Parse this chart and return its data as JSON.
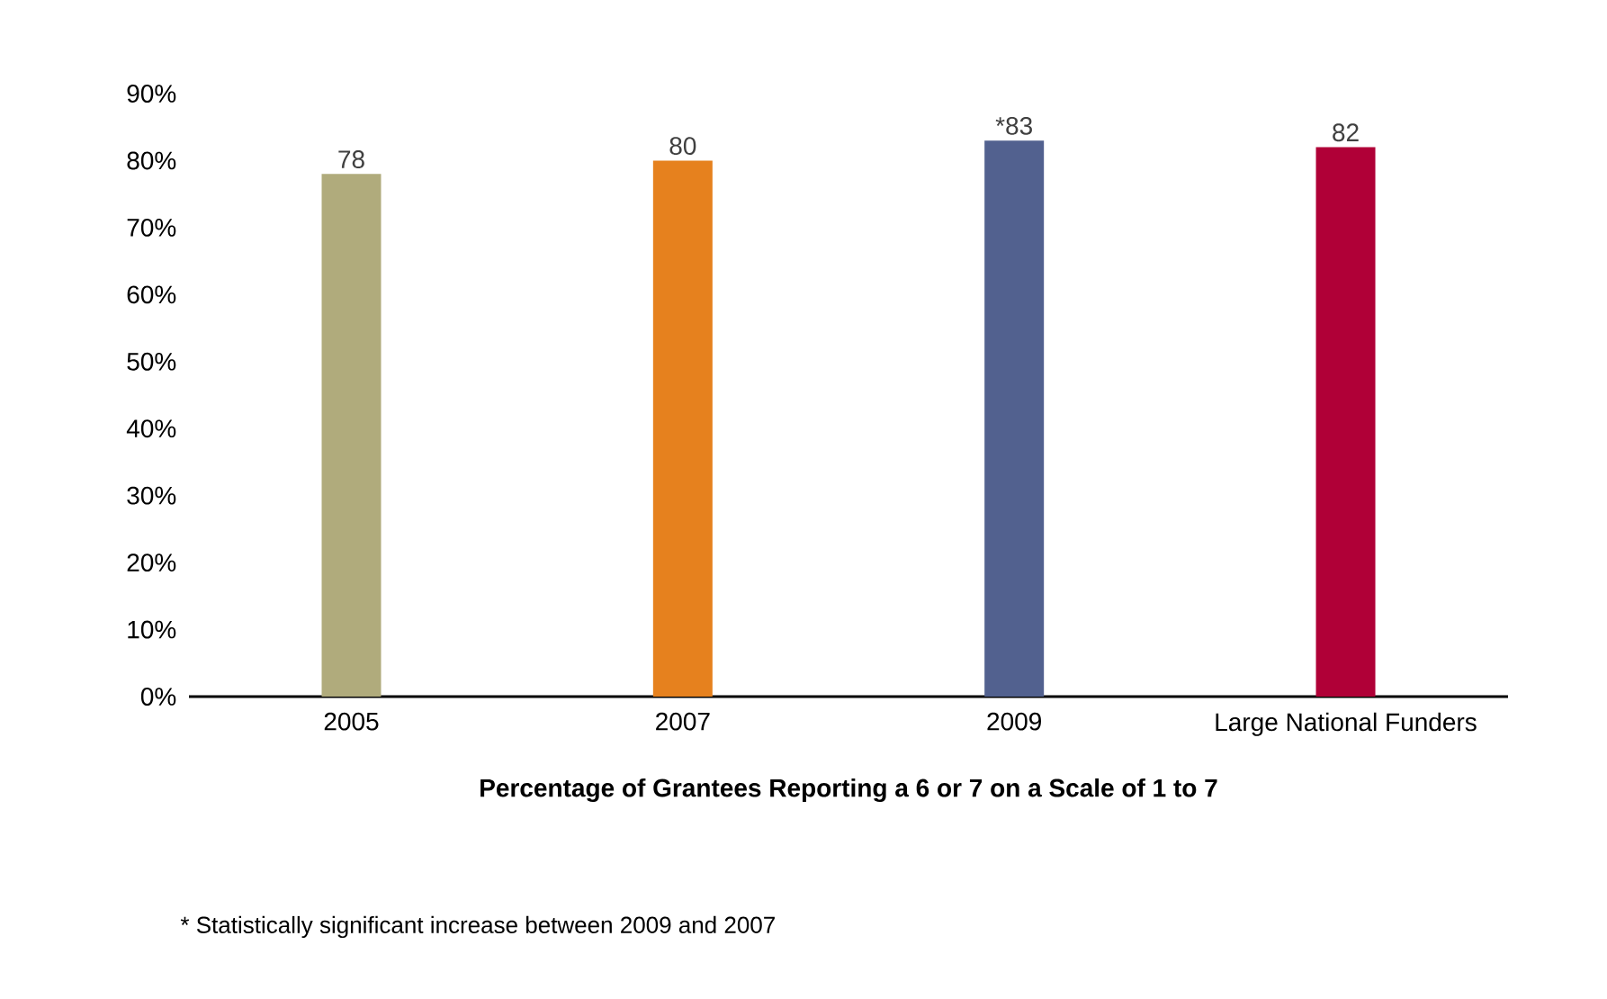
{
  "chart_data": {
    "type": "bar",
    "xlabel": "**Percentage of Grantees Reporting a 6 or 7 on a Scale of 1 to 7**",
    "categories": [
      "2005",
      "2007",
      "2009",
      "Large National Funders"
    ],
    "values": [
      78,
      80,
      83,
      82
    ],
    "colors": [
      "#b0ab7c",
      "#e6811e",
      "#52618f",
      "#b00037"
    ],
    "value_labels": [
      "78",
      "80",
      "*83",
      "82"
    ],
    "ylim": [
      0,
      90
    ],
    "yticks": [
      {
        "value": 0,
        "label": "0%"
      },
      {
        "value": 10,
        "label": "10%"
      },
      {
        "value": 20,
        "label": "20%"
      },
      {
        "value": 30,
        "label": "30%"
      },
      {
        "value": 40,
        "label": "40%"
      },
      {
        "value": 50,
        "label": "50%"
      },
      {
        "value": 60,
        "label": "60%"
      },
      {
        "value": 70,
        "label": "70%"
      },
      {
        "value": 80,
        "label": "80%"
      },
      {
        "value": 90,
        "label": "90%"
      }
    ],
    "annotations": [
      "* Statistically significant increase between 2009 and 2007"
    ]
  }
}
